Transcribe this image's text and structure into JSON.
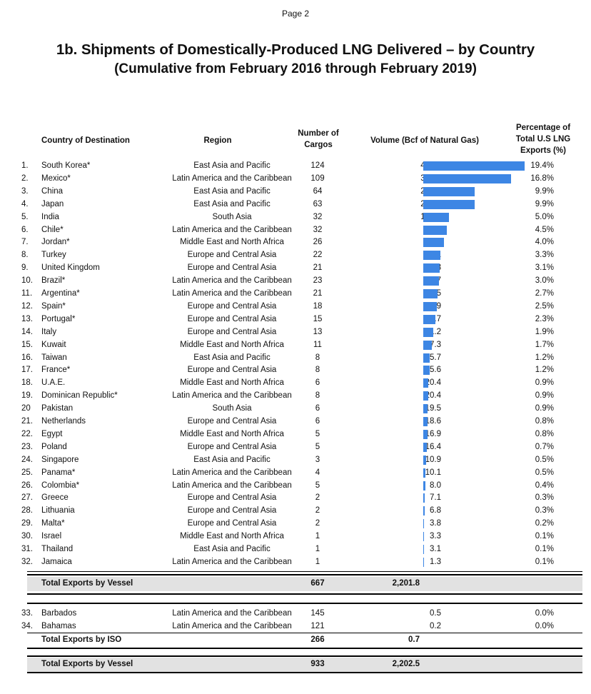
{
  "page_label": "Page 2",
  "title_line1": "1b.  Shipments of Domestically-Produced LNG Delivered – by Country",
  "title_line2": "(Cumulative from February 2016 through February 2019)",
  "headers": {
    "country": "Country of Destination",
    "region": "Region",
    "cargos_1": "Number of",
    "cargos_2": "Cargos",
    "volume": "Volume (Bcf of Natural Gas)",
    "pct_1": "Percentage of",
    "pct_2": "Total U.S LNG",
    "pct_3": "Exports (%)"
  },
  "rows": [
    {
      "num": "1.",
      "country": "South Korea*",
      "region": "East Asia and Pacific",
      "cargos": "124",
      "volume": "427.3",
      "vol_value": 427.3,
      "pct": "19.4%"
    },
    {
      "num": "2.",
      "country": "Mexico*",
      "region": "Latin America and the Caribbean",
      "cargos": "109",
      "volume": "371.0",
      "vol_value": 371.0,
      "pct": "16.8%"
    },
    {
      "num": "3.",
      "country": "China",
      "region": "East Asia and Pacific",
      "cargos": "64",
      "volume": "218.0",
      "vol_value": 218.0,
      "pct": "9.9%"
    },
    {
      "num": "4.",
      "country": "Japan",
      "region": "East Asia and Pacific",
      "cargos": "63",
      "volume": "217.7",
      "vol_value": 217.7,
      "pct": "9.9%"
    },
    {
      "num": "5.",
      "country": "India",
      "region": "South Asia",
      "cargos": "32",
      "volume": "109.5",
      "vol_value": 109.5,
      "pct": "5.0%"
    },
    {
      "num": "6.",
      "country": "Chile*",
      "region": "Latin America and the Caribbean",
      "cargos": "32",
      "volume": "99.3",
      "vol_value": 99.3,
      "pct": "4.5%"
    },
    {
      "num": "7.",
      "country": "Jordan*",
      "region": "Middle East and North Africa",
      "cargos": "26",
      "volume": "88.7",
      "vol_value": 88.7,
      "pct": "4.0%"
    },
    {
      "num": "8.",
      "country": "Turkey",
      "region": "Europe and Central Asia",
      "cargos": "22",
      "volume": "73.1",
      "vol_value": 73.1,
      "pct": "3.3%"
    },
    {
      "num": "9.",
      "country": "United Kingdom",
      "region": "Europe and Central Asia",
      "cargos": "21",
      "volume": "68.8",
      "vol_value": 68.8,
      "pct": "3.1%"
    },
    {
      "num": "10.",
      "country": "Brazil*",
      "region": "Latin America and the Caribbean",
      "cargos": "23",
      "volume": "65.7",
      "vol_value": 65.7,
      "pct": "3.0%"
    },
    {
      "num": "11.",
      "country": "Argentina*",
      "region": "Latin America and the Caribbean",
      "cargos": "21",
      "volume": "60.5",
      "vol_value": 60.5,
      "pct": "2.7%"
    },
    {
      "num": "12.",
      "country": "Spain*",
      "region": "Europe and Central Asia",
      "cargos": "18",
      "volume": "55.9",
      "vol_value": 55.9,
      "pct": "2.5%"
    },
    {
      "num": "13.",
      "country": "Portugal*",
      "region": "Europe and Central Asia",
      "cargos": "15",
      "volume": "49.7",
      "vol_value": 49.7,
      "pct": "2.3%"
    },
    {
      "num": "14.",
      "country": "Italy",
      "region": "Europe and Central Asia",
      "cargos": "13",
      "volume": "41.2",
      "vol_value": 41.2,
      "pct": "1.9%"
    },
    {
      "num": "15.",
      "country": "Kuwait",
      "region": "Middle East and North Africa",
      "cargos": "11",
      "volume": "37.3",
      "vol_value": 37.3,
      "pct": "1.7%"
    },
    {
      "num": "16.",
      "country": "Taiwan",
      "region": "East Asia and Pacific",
      "cargos": "8",
      "volume": "25.7",
      "vol_value": 25.7,
      "pct": "1.2%"
    },
    {
      "num": "17.",
      "country": "France*",
      "region": "Europe and Central Asia",
      "cargos": "8",
      "volume": "25.6",
      "vol_value": 25.6,
      "pct": "1.2%"
    },
    {
      "num": "18.",
      "country": "U.A.E.",
      "region": "Middle East and North Africa",
      "cargos": "6",
      "volume": "20.4",
      "vol_value": 20.4,
      "pct": "0.9%"
    },
    {
      "num": "19.",
      "country": "Dominican Republic*",
      "region": "Latin America and the Caribbean",
      "cargos": "8",
      "volume": "20.4",
      "vol_value": 20.4,
      "pct": "0.9%"
    },
    {
      "num": "20",
      "country": "Pakistan",
      "region": "South Asia",
      "cargos": "6",
      "volume": "19.5",
      "vol_value": 19.5,
      "pct": "0.9%"
    },
    {
      "num": "21.",
      "country": "Netherlands",
      "region": "Europe and Central Asia",
      "cargos": "6",
      "volume": "18.6",
      "vol_value": 18.6,
      "pct": "0.8%"
    },
    {
      "num": "22.",
      "country": "Egypt",
      "region": "Middle East and North Africa",
      "cargos": "5",
      "volume": "16.9",
      "vol_value": 16.9,
      "pct": "0.8%"
    },
    {
      "num": "23.",
      "country": "Poland",
      "region": "Europe and Central Asia",
      "cargos": "5",
      "volume": "16.4",
      "vol_value": 16.4,
      "pct": "0.7%"
    },
    {
      "num": "24.",
      "country": "Singapore",
      "region": "East Asia and Pacific",
      "cargos": "3",
      "volume": "10.9",
      "vol_value": 10.9,
      "pct": "0.5%"
    },
    {
      "num": "25.",
      "country": "Panama*",
      "region": "Latin America and the Caribbean",
      "cargos": "4",
      "volume": "10.1",
      "vol_value": 10.1,
      "pct": "0.5%"
    },
    {
      "num": "26.",
      "country": "Colombia*",
      "region": "Latin America and the Caribbean",
      "cargos": "5",
      "volume": "8.0",
      "vol_value": 8.0,
      "pct": "0.4%"
    },
    {
      "num": "27.",
      "country": "Greece",
      "region": "Europe and Central Asia",
      "cargos": "2",
      "volume": "7.1",
      "vol_value": 7.1,
      "pct": "0.3%"
    },
    {
      "num": "28.",
      "country": "Lithuania",
      "region": "Europe and Central Asia",
      "cargos": "2",
      "volume": "6.8",
      "vol_value": 6.8,
      "pct": "0.3%"
    },
    {
      "num": "29.",
      "country": "Malta*",
      "region": "Europe and Central Asia",
      "cargos": "2",
      "volume": "3.8",
      "vol_value": 3.8,
      "pct": "0.2%"
    },
    {
      "num": "30.",
      "country": "Israel",
      "region": "Middle East and North Africa",
      "cargos": "1",
      "volume": "3.3",
      "vol_value": 3.3,
      "pct": "0.1%"
    },
    {
      "num": "31.",
      "country": "Thailand",
      "region": "East Asia and Pacific",
      "cargos": "1",
      "volume": "3.1",
      "vol_value": 3.1,
      "pct": "0.1%"
    },
    {
      "num": "32.",
      "country": "Jamaica",
      "region": "Latin America and the Caribbean",
      "cargos": "1",
      "volume": "1.3",
      "vol_value": 1.3,
      "pct": "0.1%"
    }
  ],
  "total_vessel": {
    "label": "Total Exports by Vessel",
    "cargos": "667",
    "volume": "2,201.8"
  },
  "iso_rows": [
    {
      "num": "33.",
      "country": "Barbados",
      "region": "Latin America and the Caribbean",
      "cargos": "145",
      "volume": "0.5",
      "pct": "0.0%"
    },
    {
      "num": "34.",
      "country": "Bahamas",
      "region": "Latin America and the Caribbean",
      "cargos": "121",
      "volume": "0.2",
      "pct": "0.0%"
    }
  ],
  "total_iso": {
    "label": "Total Exports by ISO",
    "cargos": "266",
    "volume": "0.7"
  },
  "grand_total": {
    "label": "Total Exports by Vessel",
    "cargos": "933",
    "volume": "2,202.5"
  },
  "bar_color": "#3d86e4"
}
